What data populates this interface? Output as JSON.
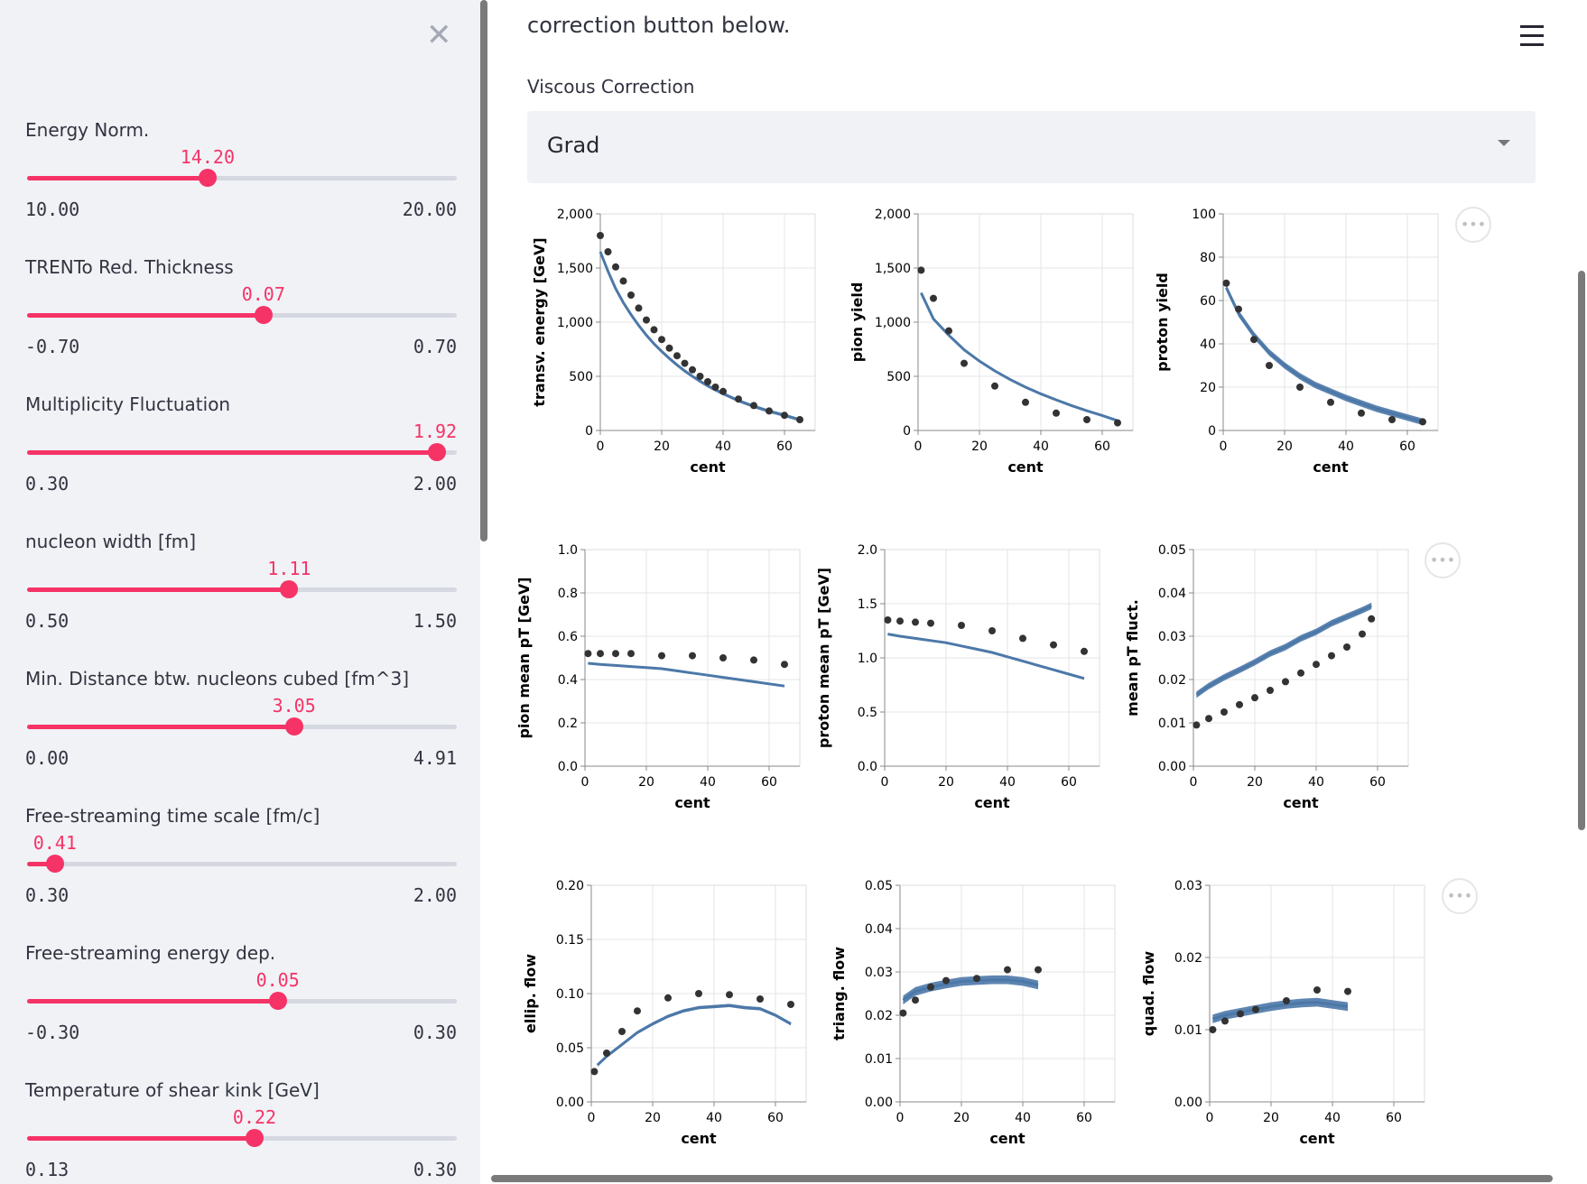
{
  "sidebar": {
    "close_icon": "close-icon",
    "sliders": [
      {
        "label": "Energy Norm.",
        "value": "14.20",
        "min": "10.00",
        "max": "20.00",
        "num_value": 14.2,
        "num_min": 10.0,
        "num_max": 20.0
      },
      {
        "label": "TRENTo Red. Thickness",
        "value": "0.07",
        "min": "-0.70",
        "max": "0.70",
        "num_value": 0.07,
        "num_min": -0.7,
        "num_max": 0.7
      },
      {
        "label": "Multiplicity Fluctuation",
        "value": "1.92",
        "min": "0.30",
        "max": "2.00",
        "num_value": 1.92,
        "num_min": 0.3,
        "num_max": 2.0
      },
      {
        "label": "nucleon width [fm]",
        "value": "1.11",
        "min": "0.50",
        "max": "1.50",
        "num_value": 1.11,
        "num_min": 0.5,
        "num_max": 1.5
      },
      {
        "label": "Min. Distance btw. nucleons cubed [fm^3]",
        "value": "3.05",
        "min": "0.00",
        "max": "4.91",
        "num_value": 3.05,
        "num_min": 0.0,
        "num_max": 4.91
      },
      {
        "label": "Free-streaming time scale [fm/c]",
        "value": "0.41",
        "min": "0.30",
        "max": "2.00",
        "num_value": 0.41,
        "num_min": 0.3,
        "num_max": 2.0
      },
      {
        "label": "Free-streaming energy dep.",
        "value": "0.05",
        "min": "-0.30",
        "max": "0.30",
        "num_value": 0.05,
        "num_min": -0.3,
        "num_max": 0.3
      },
      {
        "label": "Temperature of shear kink [GeV]",
        "value": "0.22",
        "min": "0.13",
        "max": "0.30",
        "num_value": 0.22,
        "num_min": 0.13,
        "num_max": 0.3
      }
    ]
  },
  "main": {
    "intro_text": "correction button below.",
    "select_label": "Viscous Correction",
    "select_value": "Grad",
    "menu_icon": "hamburger-menu-icon",
    "more_icon": "ellipsis-icon",
    "more_glyph": "•••"
  },
  "colors": {
    "accent": "#f63366",
    "model": "#4c78a8",
    "data_point": "#333333"
  },
  "chart_data": [
    {
      "type": "line",
      "title": "",
      "xlabel": "cent",
      "ylabel": "transv. energy [GeV]",
      "xlim": [
        0,
        70
      ],
      "ylim": [
        0,
        2000
      ],
      "xticks": [
        "0",
        "20",
        "40",
        "60"
      ],
      "yticks": [
        "0",
        "500",
        "1,000",
        "1,500",
        "2,000"
      ],
      "ytickvals": [
        0,
        500,
        1000,
        1500,
        2000
      ],
      "band_width": 30,
      "model": {
        "x": [
          0,
          2.5,
          5,
          7.5,
          10,
          12.5,
          15,
          17.5,
          20,
          22.5,
          25,
          27.5,
          30,
          32.5,
          35,
          37.5,
          40,
          45,
          50,
          55,
          60,
          65
        ],
        "y": [
          1650,
          1470,
          1310,
          1180,
          1070,
          970,
          880,
          800,
          730,
          665,
          605,
          550,
          500,
          455,
          412,
          375,
          340,
          275,
          222,
          178,
          140,
          98
        ]
      },
      "points": {
        "x": [
          0,
          2.5,
          5,
          7.5,
          10,
          12.5,
          15,
          17.5,
          20,
          22.5,
          25,
          27.5,
          30,
          32.5,
          35,
          37.5,
          40,
          45,
          50,
          55,
          60,
          65
        ],
        "y": [
          1800,
          1650,
          1510,
          1380,
          1250,
          1130,
          1020,
          930,
          840,
          760,
          690,
          620,
          560,
          500,
          450,
          400,
          360,
          290,
          230,
          180,
          140,
          100
        ]
      }
    },
    {
      "type": "line",
      "title": "",
      "xlabel": "cent",
      "ylabel": "pion yield",
      "xlim": [
        0,
        70
      ],
      "ylim": [
        0,
        2000
      ],
      "xticks": [
        "0",
        "20",
        "40",
        "60"
      ],
      "yticks": [
        "0",
        "500",
        "1,000",
        "1,500",
        "2,000"
      ],
      "ytickvals": [
        0,
        500,
        1000,
        1500,
        2000
      ],
      "band_width": 20,
      "model": {
        "x": [
          1,
          5,
          10,
          15,
          20,
          25,
          30,
          35,
          40,
          45,
          50,
          55,
          60,
          65
        ],
        "y": [
          1270,
          1030,
          880,
          745,
          640,
          550,
          470,
          400,
          338,
          282,
          230,
          182,
          138,
          90
        ]
      },
      "points": {
        "x": [
          1,
          5,
          10,
          15,
          25,
          35,
          45,
          55,
          65
        ],
        "y": [
          1480,
          1220,
          920,
          620,
          410,
          260,
          160,
          100,
          70
        ]
      }
    },
    {
      "type": "line",
      "title": "",
      "xlabel": "cent",
      "ylabel": "proton yield",
      "xlim": [
        0,
        70
      ],
      "ylim": [
        0,
        100
      ],
      "xticks": [
        "0",
        "20",
        "40",
        "60"
      ],
      "yticks": [
        "0",
        "20",
        "40",
        "60",
        "80",
        "100"
      ],
      "ytickvals": [
        0,
        20,
        40,
        60,
        80,
        100
      ],
      "band_width": 3,
      "model": {
        "x": [
          1,
          5,
          10,
          15,
          20,
          25,
          30,
          35,
          40,
          45,
          50,
          55,
          60,
          65
        ],
        "y": [
          66,
          54,
          44,
          36,
          30,
          25,
          21,
          18,
          15,
          12.5,
          10,
          8,
          6,
          4
        ]
      },
      "points": {
        "x": [
          1,
          5,
          10,
          15,
          25,
          35,
          45,
          55,
          65
        ],
        "y": [
          68,
          56,
          42,
          30,
          20,
          13,
          8,
          5,
          4
        ]
      }
    },
    {
      "type": "line",
      "title": "",
      "xlabel": "cent",
      "ylabel": "pion mean pT [GeV]",
      "xlim": [
        0,
        70
      ],
      "ylim": [
        0,
        1.0
      ],
      "xticks": [
        "0",
        "20",
        "40",
        "60"
      ],
      "yticks": [
        "0.0",
        "0.2",
        "0.4",
        "0.6",
        "0.8",
        "1.0"
      ],
      "ytickvals": [
        0,
        0.2,
        0.4,
        0.6,
        0.8,
        1.0
      ],
      "band_width": 0.008,
      "model": {
        "x": [
          1,
          5,
          10,
          15,
          20,
          25,
          30,
          35,
          40,
          45,
          50,
          55,
          60,
          65
        ],
        "y": [
          0.475,
          0.47,
          0.465,
          0.46,
          0.455,
          0.45,
          0.44,
          0.43,
          0.42,
          0.41,
          0.4,
          0.39,
          0.38,
          0.37
        ]
      },
      "points": {
        "x": [
          1,
          5,
          10,
          15,
          25,
          35,
          45,
          55,
          65
        ],
        "y": [
          0.52,
          0.52,
          0.52,
          0.52,
          0.51,
          0.51,
          0.5,
          0.49,
          0.47
        ]
      }
    },
    {
      "type": "line",
      "title": "",
      "xlabel": "cent",
      "ylabel": "proton mean pT [GeV]",
      "xlim": [
        0,
        70
      ],
      "ylim": [
        0,
        2.0
      ],
      "xticks": [
        "0",
        "20",
        "40",
        "60"
      ],
      "yticks": [
        "0.0",
        "0.5",
        "1.0",
        "1.5",
        "2.0"
      ],
      "ytickvals": [
        0,
        0.5,
        1.0,
        1.5,
        2.0
      ],
      "band_width": 0.015,
      "model": {
        "x": [
          1,
          5,
          10,
          15,
          20,
          25,
          30,
          35,
          40,
          45,
          50,
          55,
          60,
          65
        ],
        "y": [
          1.22,
          1.2,
          1.18,
          1.16,
          1.14,
          1.11,
          1.08,
          1.05,
          1.01,
          0.97,
          0.93,
          0.89,
          0.85,
          0.81
        ]
      },
      "points": {
        "x": [
          1,
          5,
          10,
          15,
          25,
          35,
          45,
          55,
          65
        ],
        "y": [
          1.35,
          1.34,
          1.33,
          1.32,
          1.3,
          1.25,
          1.18,
          1.12,
          1.06
        ]
      }
    },
    {
      "type": "line",
      "title": "",
      "xlabel": "cent",
      "ylabel": "mean pT fluct.",
      "xlim": [
        0,
        70
      ],
      "ylim": [
        0,
        0.05
      ],
      "xticks": [
        "0",
        "20",
        "40",
        "60"
      ],
      "yticks": [
        "0.00",
        "0.01",
        "0.02",
        "0.03",
        "0.04",
        "0.05"
      ],
      "ytickvals": [
        0,
        0.01,
        0.02,
        0.03,
        0.04,
        0.05
      ],
      "band_width": 0.0015,
      "model": {
        "x": [
          1,
          5,
          10,
          15,
          20,
          25,
          30,
          35,
          40,
          45,
          50,
          55,
          58
        ],
        "y": [
          0.0165,
          0.0185,
          0.0205,
          0.0222,
          0.024,
          0.026,
          0.0275,
          0.0295,
          0.031,
          0.033,
          0.0345,
          0.036,
          0.037
        ]
      },
      "points": {
        "x": [
          1,
          5,
          10,
          15,
          20,
          25,
          30,
          35,
          40,
          45,
          50,
          55,
          58
        ],
        "y": [
          0.0095,
          0.011,
          0.0125,
          0.0142,
          0.0158,
          0.0175,
          0.0195,
          0.0215,
          0.0235,
          0.0255,
          0.0275,
          0.0305,
          0.034
        ]
      }
    },
    {
      "type": "line",
      "title": "",
      "xlabel": "cent",
      "ylabel": "ellip. flow",
      "xlim": [
        0,
        70
      ],
      "ylim": [
        0,
        0.2
      ],
      "xticks": [
        "0",
        "20",
        "40",
        "60"
      ],
      "yticks": [
        "0.00",
        "0.05",
        "0.10",
        "0.15",
        "0.20"
      ],
      "ytickvals": [
        0,
        0.05,
        0.1,
        0.15,
        0.2
      ],
      "band_width": 0.003,
      "model": {
        "x": [
          2,
          5,
          10,
          15,
          20,
          25,
          30,
          35,
          40,
          45,
          50,
          55,
          60,
          65
        ],
        "y": [
          0.034,
          0.042,
          0.053,
          0.064,
          0.072,
          0.079,
          0.084,
          0.087,
          0.088,
          0.089,
          0.087,
          0.086,
          0.08,
          0.072
        ]
      },
      "points": {
        "x": [
          1,
          5,
          10,
          15,
          25,
          35,
          45,
          55,
          65
        ],
        "y": [
          0.028,
          0.045,
          0.065,
          0.084,
          0.096,
          0.1,
          0.099,
          0.095,
          0.09
        ]
      }
    },
    {
      "type": "line",
      "title": "",
      "xlabel": "cent",
      "ylabel": "triang. flow",
      "xlim": [
        0,
        70
      ],
      "ylim": [
        0,
        0.05
      ],
      "xticks": [
        "0",
        "20",
        "40",
        "60"
      ],
      "yticks": [
        "0.00",
        "0.01",
        "0.02",
        "0.03",
        "0.04",
        "0.05"
      ],
      "ytickvals": [
        0,
        0.01,
        0.02,
        0.03,
        0.04,
        0.05
      ],
      "band_width": 0.002,
      "model": {
        "x": [
          1,
          5,
          10,
          15,
          20,
          25,
          30,
          35,
          40,
          45
        ],
        "y": [
          0.0235,
          0.0255,
          0.0265,
          0.0272,
          0.0278,
          0.028,
          0.0282,
          0.0282,
          0.0278,
          0.027
        ]
      },
      "points": {
        "x": [
          1,
          5,
          10,
          15,
          25,
          35,
          45
        ],
        "y": [
          0.0205,
          0.0235,
          0.0265,
          0.028,
          0.0285,
          0.0305,
          0.0305
        ]
      }
    },
    {
      "type": "line",
      "title": "",
      "xlabel": "cent",
      "ylabel": "quad. flow",
      "xlim": [
        0,
        70
      ],
      "ylim": [
        0,
        0.03
      ],
      "xticks": [
        "0",
        "20",
        "40",
        "60"
      ],
      "yticks": [
        "0.00",
        "0.01",
        "0.02",
        "0.03"
      ],
      "ytickvals": [
        0,
        0.01,
        0.02,
        0.03
      ],
      "band_width": 0.0012,
      "model": {
        "x": [
          1,
          5,
          10,
          15,
          20,
          25,
          30,
          35,
          40,
          45
        ],
        "y": [
          0.0115,
          0.012,
          0.0124,
          0.0128,
          0.0132,
          0.0135,
          0.0137,
          0.0138,
          0.0135,
          0.0132
        ]
      },
      "points": {
        "x": [
          1,
          5,
          10,
          15,
          25,
          35,
          45
        ],
        "y": [
          0.01,
          0.0112,
          0.0122,
          0.0128,
          0.014,
          0.0155,
          0.0153
        ]
      }
    }
  ]
}
